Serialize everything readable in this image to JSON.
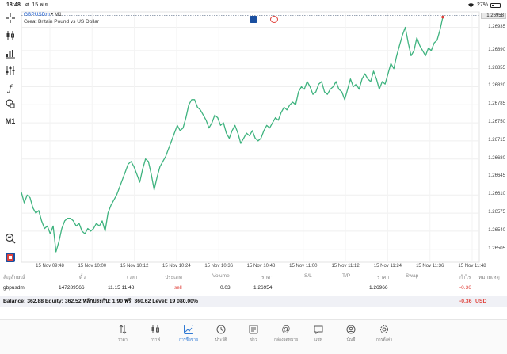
{
  "status_bar": {
    "time": "18:48",
    "date": "ศ. 15 พ.ย.",
    "battery": "27%"
  },
  "chart_header": {
    "symbol": "GBPUSDm",
    "separator": "•",
    "timeframe": "M1",
    "description": "Great Britain Pound vs US Dollar"
  },
  "toolbar": {
    "timeframe": "M1"
  },
  "chart_data": {
    "type": "line",
    "title": "",
    "series": [
      {
        "values": [
          1.26615,
          1.26595,
          1.2661,
          1.26605,
          1.26585,
          1.26575,
          1.2658,
          1.2656,
          1.26545,
          1.2655,
          1.26535,
          1.2655,
          1.265,
          1.2652,
          1.26545,
          1.2656,
          1.26565,
          1.26565,
          1.2656,
          1.2655,
          1.26555,
          1.2654,
          1.26535,
          1.26545,
          1.2654,
          1.26545,
          1.26555,
          1.2655,
          1.2656,
          1.2654,
          1.26575,
          1.2659,
          1.266,
          1.2661,
          1.26625,
          1.2664,
          1.26655,
          1.2667,
          1.26675,
          1.26665,
          1.2665,
          1.26635,
          1.2666,
          1.2668,
          1.26675,
          1.2665,
          1.2662,
          1.26645,
          1.26665,
          1.26675,
          1.26685,
          1.267,
          1.26715,
          1.2673,
          1.26745,
          1.26735,
          1.2674,
          1.2676,
          1.26785,
          1.26795,
          1.26795,
          1.2678,
          1.26775,
          1.26765,
          1.26755,
          1.2674,
          1.2675,
          1.26765,
          1.2676,
          1.26745,
          1.2675,
          1.2673,
          1.2672,
          1.26735,
          1.26745,
          1.2673,
          1.2671,
          1.2672,
          1.2673,
          1.26725,
          1.26735,
          1.2672,
          1.26715,
          1.2672,
          1.26735,
          1.26745,
          1.2674,
          1.2675,
          1.2676,
          1.26755,
          1.2677,
          1.2678,
          1.26775,
          1.26785,
          1.2679,
          1.26785,
          1.2681,
          1.2682,
          1.26815,
          1.2683,
          1.2682,
          1.26805,
          1.2681,
          1.26825,
          1.2683,
          1.2681,
          1.26805,
          1.26815,
          1.2682,
          1.2683,
          1.26815,
          1.2681,
          1.26795,
          1.26815,
          1.26835,
          1.2682,
          1.26825,
          1.26815,
          1.26835,
          1.26845,
          1.26835,
          1.2683,
          1.2685,
          1.26835,
          1.26815,
          1.2683,
          1.26825,
          1.26845,
          1.26865,
          1.26855,
          1.2688,
          1.269,
          1.2692,
          1.26935,
          1.26905,
          1.2688,
          1.2689,
          1.26915,
          1.269,
          1.2689,
          1.2688,
          1.26895,
          1.2689,
          1.26905,
          1.2691,
          1.2693,
          1.26955
        ]
      }
    ],
    "y_ticks": [
      "1.26935",
      "1.26890",
      "1.26855",
      "1.26820",
      "1.26785",
      "1.26750",
      "1.26715",
      "1.26680",
      "1.26645",
      "1.26610",
      "1.26575",
      "1.26540",
      "1.26505"
    ],
    "ylim": [
      1.2648,
      1.26965
    ],
    "current_price": "1.26958",
    "x_ticks": [
      "15 Nov 09:48",
      "15 Nov 10:00",
      "15 Nov 10:12",
      "15 Nov 10:24",
      "15 Nov 10:36",
      "15 Nov 10:48",
      "15 Nov 11:00",
      "15 Nov 11:12",
      "15 Nov 11:24",
      "15 Nov 11:36",
      "15 Nov 11:48"
    ],
    "grid": true,
    "line_color": "#3fb37f"
  },
  "positions": {
    "headers": [
      "สัญลักษณ์",
      "ตั๋ว",
      "เวลา",
      "ประเภท",
      "Volume",
      "ราคา",
      "S/L",
      "T/P",
      "ราคา",
      "Swap",
      "กำไร",
      "หมายเหตุ"
    ],
    "rows": [
      {
        "symbol": "gbpusdm",
        "ticket": "147289566",
        "time": "11.15 11:48",
        "type": "sell",
        "volume": "0.03",
        "open_price": "1.26954",
        "sl": "",
        "tp": "",
        "price": "1.26966",
        "swap": "",
        "profit": "-0.36",
        "comment": ""
      }
    ]
  },
  "balance": {
    "text": "Balance: 362.88 Equity: 362.52 หลักประกัน: 1.90 ฟรี: 360.62 Level: 19 080.00%",
    "profit": "-0.36",
    "currency": "USD"
  },
  "nav": [
    {
      "label": "ราคา",
      "icon": "quotes-icon"
    },
    {
      "label": "กราฟ",
      "icon": "chart-icon"
    },
    {
      "label": "การซื้อขาย",
      "icon": "trade-icon"
    },
    {
      "label": "ประวัติ",
      "icon": "history-icon"
    },
    {
      "label": "ข่าว",
      "icon": "news-icon"
    },
    {
      "label": "กล่องจดหมาย",
      "icon": "mailbox-icon"
    },
    {
      "label": "แชท",
      "icon": "chat-icon"
    },
    {
      "label": "บัญชี",
      "icon": "account-icon"
    },
    {
      "label": "การตั้งค่า",
      "icon": "settings-icon"
    }
  ],
  "colors": {
    "accent": "#2f79d4",
    "sell": "#e0413a",
    "line": "#3fb37f"
  }
}
